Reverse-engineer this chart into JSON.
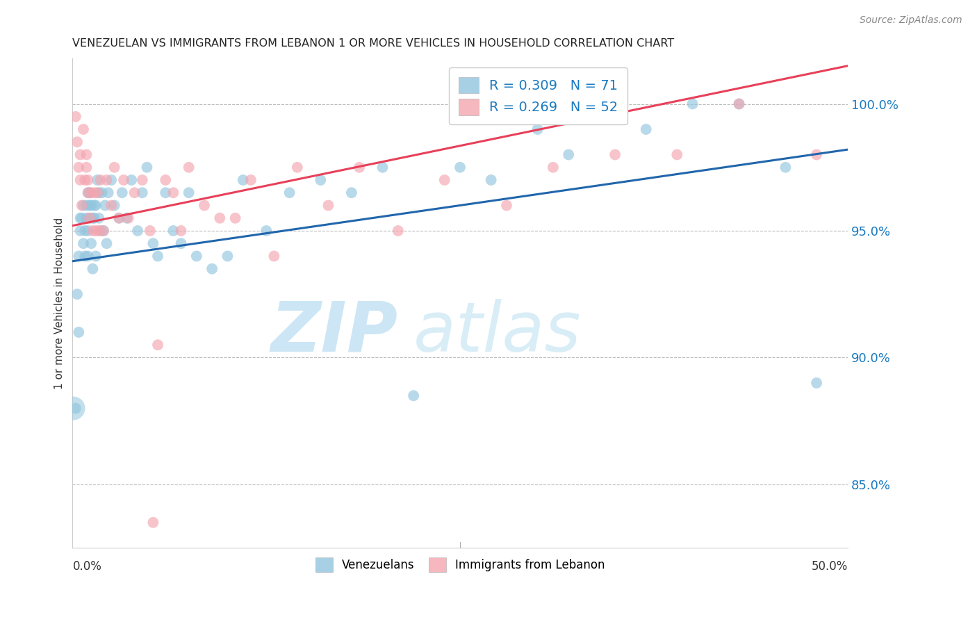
{
  "title": "VENEZUELAN VS IMMIGRANTS FROM LEBANON 1 OR MORE VEHICLES IN HOUSEHOLD CORRELATION CHART",
  "source": "Source: ZipAtlas.com",
  "ylabel": "1 or more Vehicles in Household",
  "ytick_labels": [
    "85.0%",
    "90.0%",
    "95.0%",
    "100.0%"
  ],
  "ytick_values": [
    85.0,
    90.0,
    95.0,
    100.0
  ],
  "xmin": 0.0,
  "xmax": 50.0,
  "ymin": 82.5,
  "ymax": 101.8,
  "legend_blue_label": "R = 0.309   N = 71",
  "legend_pink_label": "R = 0.269   N = 52",
  "venezuelan_label": "Venezuelans",
  "lebanon_label": "Immigrants from Lebanon",
  "blue_color": "#92c5de",
  "pink_color": "#f4a5b0",
  "blue_line_color": "#2166ac",
  "pink_line_color": "#e8405a",
  "blue_R": 0.309,
  "blue_N": 71,
  "pink_R": 0.269,
  "pink_N": 52,
  "venezuelan_x": [
    0.2,
    0.3,
    0.4,
    0.4,
    0.5,
    0.5,
    0.6,
    0.7,
    0.7,
    0.8,
    0.8,
    0.9,
    0.9,
    1.0,
    1.0,
    1.0,
    1.1,
    1.1,
    1.1,
    1.2,
    1.2,
    1.3,
    1.3,
    1.4,
    1.4,
    1.5,
    1.5,
    1.6,
    1.7,
    1.7,
    1.8,
    1.9,
    2.0,
    2.1,
    2.2,
    2.3,
    2.5,
    2.7,
    3.0,
    3.2,
    3.5,
    3.8,
    4.2,
    4.5,
    4.8,
    5.2,
    5.5,
    6.0,
    6.5,
    7.0,
    7.5,
    8.0,
    9.0,
    10.0,
    11.0,
    12.5,
    14.0,
    16.0,
    18.0,
    20.0,
    22.0,
    25.0,
    27.0,
    30.0,
    32.0,
    35.0,
    37.0,
    40.0,
    43.0,
    46.0,
    48.0
  ],
  "venezuelan_y": [
    88.0,
    92.5,
    91.0,
    94.0,
    95.5,
    95.0,
    95.5,
    94.5,
    96.0,
    95.0,
    94.0,
    95.5,
    96.0,
    96.5,
    95.0,
    94.0,
    95.5,
    96.0,
    96.5,
    94.5,
    96.0,
    95.5,
    93.5,
    96.0,
    95.5,
    94.0,
    96.0,
    97.0,
    96.5,
    95.5,
    95.0,
    96.5,
    95.0,
    96.0,
    94.5,
    96.5,
    97.0,
    96.0,
    95.5,
    96.5,
    95.5,
    97.0,
    95.0,
    96.5,
    97.5,
    94.5,
    94.0,
    96.5,
    95.0,
    94.5,
    96.5,
    94.0,
    93.5,
    94.0,
    97.0,
    95.0,
    96.5,
    97.0,
    96.5,
    97.5,
    88.5,
    97.5,
    97.0,
    99.0,
    98.0,
    99.5,
    99.0,
    100.0,
    100.0,
    97.5,
    89.0
  ],
  "lebanon_x": [
    0.2,
    0.3,
    0.4,
    0.5,
    0.5,
    0.6,
    0.7,
    0.8,
    0.9,
    0.9,
    1.0,
    1.0,
    1.1,
    1.2,
    1.3,
    1.4,
    1.5,
    1.6,
    1.7,
    1.8,
    2.0,
    2.2,
    2.5,
    2.7,
    3.0,
    3.3,
    3.6,
    4.0,
    4.5,
    5.0,
    5.5,
    6.0,
    6.5,
    7.0,
    7.5,
    8.5,
    9.5,
    10.5,
    11.5,
    13.0,
    14.5,
    16.5,
    18.5,
    21.0,
    24.0,
    28.0,
    31.0,
    35.0,
    39.0,
    43.0,
    48.0,
    5.2
  ],
  "lebanon_y": [
    99.5,
    98.5,
    97.5,
    98.0,
    97.0,
    96.0,
    99.0,
    97.0,
    97.5,
    98.0,
    96.5,
    97.0,
    95.5,
    96.5,
    95.0,
    96.5,
    95.0,
    96.5,
    95.0,
    97.0,
    95.0,
    97.0,
    96.0,
    97.5,
    95.5,
    97.0,
    95.5,
    96.5,
    97.0,
    95.0,
    90.5,
    97.0,
    96.5,
    95.0,
    97.5,
    96.0,
    95.5,
    95.5,
    97.0,
    94.0,
    97.5,
    96.0,
    97.5,
    95.0,
    97.0,
    96.0,
    97.5,
    98.0,
    98.0,
    100.0,
    98.0,
    83.5
  ],
  "blue_line_x0": 0.0,
  "blue_line_x1": 50.0,
  "blue_line_y0": 93.8,
  "blue_line_y1": 98.2,
  "pink_line_x0": 0.0,
  "pink_line_x1": 50.0,
  "pink_line_y0": 95.2,
  "pink_line_y1": 101.5
}
